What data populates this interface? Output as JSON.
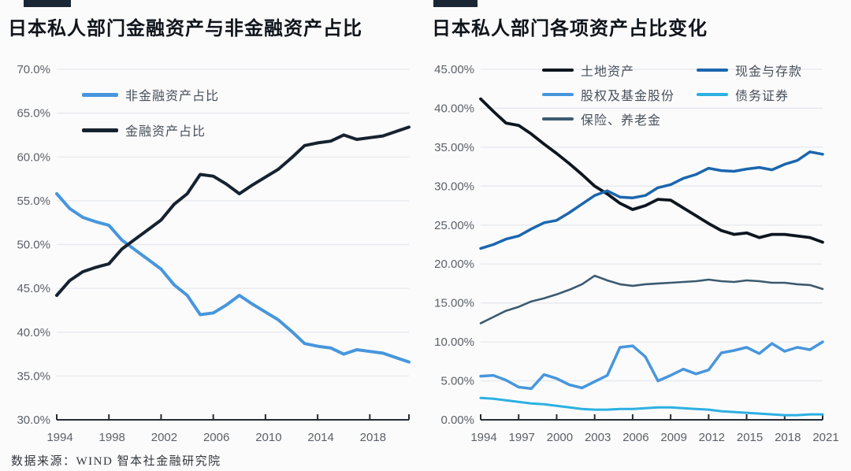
{
  "source_note": "数据来源：WIND 智本社金融研究院",
  "colors": {
    "accent_bar": "#1b2735",
    "gridline": "#e6e8eb",
    "axis": "#262c34",
    "tick_label": "#5b6168",
    "legend_text": "#47505b",
    "title_text": "#10151c"
  },
  "chart_data": [
    {
      "type": "line",
      "title": "日本私人部门金融资产与非金融资产占比",
      "x": [
        1994,
        1995,
        1996,
        1997,
        1998,
        1999,
        2000,
        2001,
        2002,
        2003,
        2004,
        2005,
        2006,
        2007,
        2008,
        2009,
        2010,
        2011,
        2012,
        2013,
        2014,
        2015,
        2016,
        2017,
        2018,
        2019,
        2020,
        2021
      ],
      "xticks": [
        1994,
        1998,
        2002,
        2006,
        2010,
        2014,
        2018
      ],
      "xtick_labels": [
        "1994",
        "1998",
        "2002",
        "2006",
        "2010",
        "2014",
        "2018"
      ],
      "ylim": [
        30,
        70
      ],
      "ytick_labels": [
        "70.0%",
        "65.0%",
        "60.0%",
        "55.0%",
        "50.0%",
        "45.0%",
        "40.0%",
        "35.0%",
        "30.0%"
      ],
      "grid": true,
      "legend_position": "inside-top-left",
      "series": [
        {
          "name": "非金融资产占比",
          "color": "#4796dd",
          "values": [
            55.8,
            54.1,
            53.1,
            52.6,
            52.2,
            50.5,
            49.4,
            48.3,
            47.2,
            45.4,
            44.2,
            42.0,
            42.2,
            43.1,
            44.2,
            43.2,
            42.3,
            41.4,
            40.1,
            38.7,
            38.4,
            38.2,
            37.5,
            38.0,
            37.8,
            37.6,
            37.1,
            36.6
          ]
        },
        {
          "name": "金融资产占比",
          "color": "#16222f",
          "values": [
            44.2,
            45.9,
            46.9,
            47.4,
            47.8,
            49.5,
            50.6,
            51.7,
            52.8,
            54.6,
            55.8,
            58.0,
            57.8,
            56.9,
            55.8,
            56.8,
            57.7,
            58.6,
            59.9,
            61.3,
            61.6,
            61.8,
            62.5,
            62.0,
            62.2,
            62.4,
            62.9,
            63.4
          ]
        }
      ]
    },
    {
      "type": "line",
      "title": "日本私人部门各项资产占比变化",
      "x": [
        1994,
        1995,
        1996,
        1997,
        1998,
        1999,
        2000,
        2001,
        2002,
        2003,
        2004,
        2005,
        2006,
        2007,
        2008,
        2009,
        2010,
        2011,
        2012,
        2013,
        2014,
        2015,
        2016,
        2017,
        2018,
        2019,
        2020,
        2021
      ],
      "xticks": [
        1994,
        1997,
        2000,
        2003,
        2006,
        2009,
        2012,
        2015,
        2018,
        2021
      ],
      "xtick_labels": [
        "1994",
        "1997",
        "2000",
        "2003",
        "2006",
        "2009",
        "2012",
        "2015",
        "2018",
        "2021"
      ],
      "ylim": [
        0,
        45
      ],
      "ytick_labels": [
        "45.00%",
        "40.00%",
        "35.00%",
        "30.00%",
        "25.00%",
        "20.00%",
        "15.00%",
        "10.00%",
        "5.00%",
        "0.00%"
      ],
      "grid": true,
      "legend_position": "top",
      "series": [
        {
          "name": "土地资产",
          "color": "#0d161f",
          "values": [
            41.2,
            39.6,
            38.1,
            37.8,
            36.7,
            35.4,
            34.2,
            32.9,
            31.5,
            30.0,
            29.0,
            27.8,
            27.0,
            27.5,
            28.3,
            28.2,
            27.2,
            26.2,
            25.2,
            24.3,
            23.8,
            24.0,
            23.4,
            23.8,
            23.8,
            23.6,
            23.4,
            22.8
          ]
        },
        {
          "name": "现金与存款",
          "color": "#1b66ae",
          "values": [
            22.0,
            22.5,
            23.2,
            23.6,
            24.5,
            25.3,
            25.6,
            26.6,
            27.7,
            28.8,
            29.4,
            28.6,
            28.5,
            28.8,
            29.8,
            30.2,
            31.0,
            31.5,
            32.3,
            32.0,
            31.9,
            32.2,
            32.4,
            32.1,
            32.8,
            33.3,
            34.4,
            34.1
          ]
        },
        {
          "name": "股权及基金股份",
          "color": "#4796dd",
          "values": [
            5.6,
            5.7,
            5.1,
            4.2,
            4.0,
            5.8,
            5.3,
            4.5,
            4.1,
            4.9,
            5.7,
            9.3,
            9.5,
            8.1,
            5.0,
            5.7,
            6.5,
            5.9,
            6.4,
            8.6,
            8.9,
            9.3,
            8.5,
            9.8,
            8.8,
            9.3,
            9.0,
            10.0
          ]
        },
        {
          "name": "债务证券",
          "color": "#2cb0e2",
          "values": [
            2.8,
            2.7,
            2.5,
            2.3,
            2.1,
            2.0,
            1.8,
            1.6,
            1.4,
            1.3,
            1.3,
            1.4,
            1.4,
            1.5,
            1.6,
            1.6,
            1.5,
            1.4,
            1.3,
            1.1,
            1.0,
            0.9,
            0.8,
            0.7,
            0.6,
            0.6,
            0.7,
            0.7
          ]
        },
        {
          "name": "保险、养老金",
          "color": "#3c5a70",
          "values": [
            12.4,
            13.2,
            14.0,
            14.5,
            15.2,
            15.6,
            16.1,
            16.7,
            17.4,
            18.5,
            17.9,
            17.4,
            17.2,
            17.4,
            17.5,
            17.6,
            17.7,
            17.8,
            18.0,
            17.8,
            17.7,
            17.9,
            17.8,
            17.6,
            17.6,
            17.4,
            17.3,
            16.8
          ]
        }
      ]
    }
  ]
}
